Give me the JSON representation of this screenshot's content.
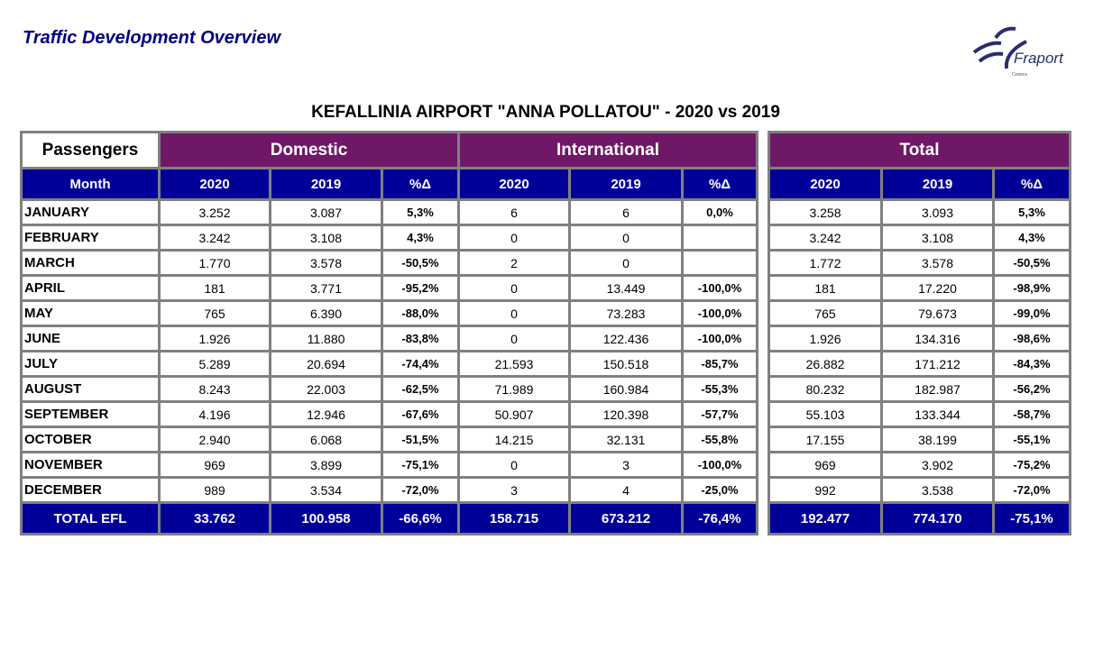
{
  "header": {
    "title": "Traffic Development Overview",
    "logo_text": "Fraport",
    "logo_subtext": "Greece",
    "subtitle": "KEFALLINIA AIRPORT \"ANNA POLLATOU\" - 2020 vs 2019"
  },
  "table": {
    "corner": "Passengers",
    "groups": [
      "Domestic",
      "International",
      "Total"
    ],
    "month_header": "Month",
    "cols": [
      "2020",
      "2019",
      "%Δ"
    ],
    "colors": {
      "group": "#701868",
      "header": "#000099",
      "border": "#808080"
    },
    "rows": [
      [
        "JANUARY",
        "3.252",
        "3.087",
        "5,3%",
        "6",
        "6",
        "0,0%",
        "3.258",
        "3.093",
        "5,3%"
      ],
      [
        "FEBRUARY",
        "3.242",
        "3.108",
        "4,3%",
        "0",
        "0",
        "",
        "3.242",
        "3.108",
        "4,3%"
      ],
      [
        "MARCH",
        "1.770",
        "3.578",
        "-50,5%",
        "2",
        "0",
        "",
        "1.772",
        "3.578",
        "-50,5%"
      ],
      [
        "APRIL",
        "181",
        "3.771",
        "-95,2%",
        "0",
        "13.449",
        "-100,0%",
        "181",
        "17.220",
        "-98,9%"
      ],
      [
        "MAY",
        "765",
        "6.390",
        "-88,0%",
        "0",
        "73.283",
        "-100,0%",
        "765",
        "79.673",
        "-99,0%"
      ],
      [
        "JUNE",
        "1.926",
        "11.880",
        "-83,8%",
        "0",
        "122.436",
        "-100,0%",
        "1.926",
        "134.316",
        "-98,6%"
      ],
      [
        "JULY",
        "5.289",
        "20.694",
        "-74,4%",
        "21.593",
        "150.518",
        "-85,7%",
        "26.882",
        "171.212",
        "-84,3%"
      ],
      [
        "AUGUST",
        "8.243",
        "22.003",
        "-62,5%",
        "71.989",
        "160.984",
        "-55,3%",
        "80.232",
        "182.987",
        "-56,2%"
      ],
      [
        "SEPTEMBER",
        "4.196",
        "12.946",
        "-67,6%",
        "50.907",
        "120.398",
        "-57,7%",
        "55.103",
        "133.344",
        "-58,7%"
      ],
      [
        "OCTOBER",
        "2.940",
        "6.068",
        "-51,5%",
        "14.215",
        "32.131",
        "-55,8%",
        "17.155",
        "38.199",
        "-55,1%"
      ],
      [
        "NOVEMBER",
        "969",
        "3.899",
        "-75,1%",
        "0",
        "3",
        "-100,0%",
        "969",
        "3.902",
        "-75,2%"
      ],
      [
        "DECEMBER",
        "989",
        "3.534",
        "-72,0%",
        "3",
        "4",
        "-25,0%",
        "992",
        "3.538",
        "-72,0%"
      ]
    ],
    "total": [
      "TOTAL EFL",
      "33.762",
      "100.958",
      "-66,6%",
      "158.715",
      "673.212",
      "-76,4%",
      "192.477",
      "774.170",
      "-75,1%"
    ]
  }
}
